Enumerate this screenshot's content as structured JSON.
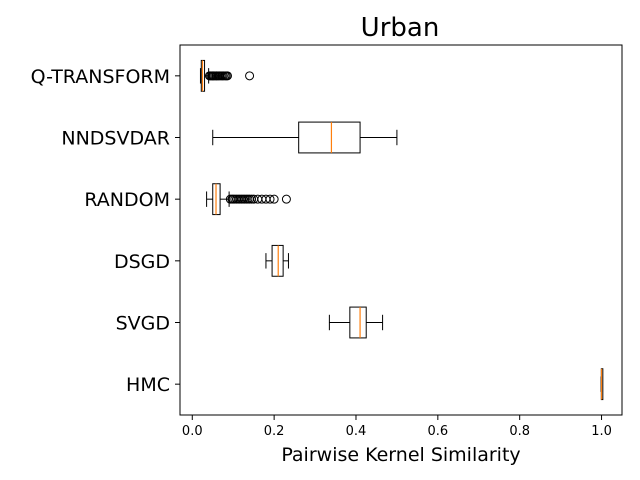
{
  "chart_data": {
    "type": "boxplot",
    "orientation": "horizontal",
    "title": "Urban",
    "xlabel": "Pairwise Kernel Similarity",
    "ylabel": "",
    "xlim": [
      -0.03,
      1.05
    ],
    "xticks": [
      0.0,
      0.2,
      0.4,
      0.6,
      0.8,
      1.0
    ],
    "xtick_labels": [
      "0.0",
      "0.2",
      "0.4",
      "0.6",
      "0.8",
      "1.0"
    ],
    "grid": false,
    "colors": {
      "box": "#000000",
      "median": "#ff7f0e",
      "flier": "#000000"
    },
    "categories": [
      "Q-TRANSFORM",
      "NNDSVDAR",
      "RANDOM",
      "DSGD",
      "SVGD",
      "HMC"
    ],
    "boxes": [
      {
        "label": "Q-TRANSFORM",
        "whislo": 0.02,
        "q1": 0.022,
        "med": 0.025,
        "q3": 0.03,
        "whishi": 0.04,
        "fliers": [
          0.042,
          0.045,
          0.048,
          0.05,
          0.052,
          0.055,
          0.058,
          0.06,
          0.063,
          0.066,
          0.07,
          0.073,
          0.076,
          0.08,
          0.083,
          0.086,
          0.14
        ]
      },
      {
        "label": "NNDSVDAR",
        "whislo": 0.05,
        "q1": 0.26,
        "med": 0.34,
        "q3": 0.41,
        "whishi": 0.5,
        "fliers": []
      },
      {
        "label": "RANDOM",
        "whislo": 0.035,
        "q1": 0.05,
        "med": 0.058,
        "q3": 0.068,
        "whishi": 0.09,
        "fliers": [
          0.093,
          0.097,
          0.1,
          0.104,
          0.108,
          0.112,
          0.116,
          0.12,
          0.124,
          0.128,
          0.132,
          0.136,
          0.14,
          0.145,
          0.15,
          0.16,
          0.17,
          0.18,
          0.19,
          0.2,
          0.23
        ]
      },
      {
        "label": "DSGD",
        "whislo": 0.18,
        "q1": 0.195,
        "med": 0.21,
        "q3": 0.222,
        "whishi": 0.235,
        "fliers": []
      },
      {
        "label": "SVGD",
        "whislo": 0.335,
        "q1": 0.385,
        "med": 0.41,
        "q3": 0.425,
        "whishi": 0.465,
        "fliers": []
      },
      {
        "label": "HMC",
        "whislo": 0.999,
        "q1": 0.9995,
        "med": 1.0,
        "q3": 1.0,
        "whishi": 1.0,
        "fliers": []
      }
    ]
  }
}
